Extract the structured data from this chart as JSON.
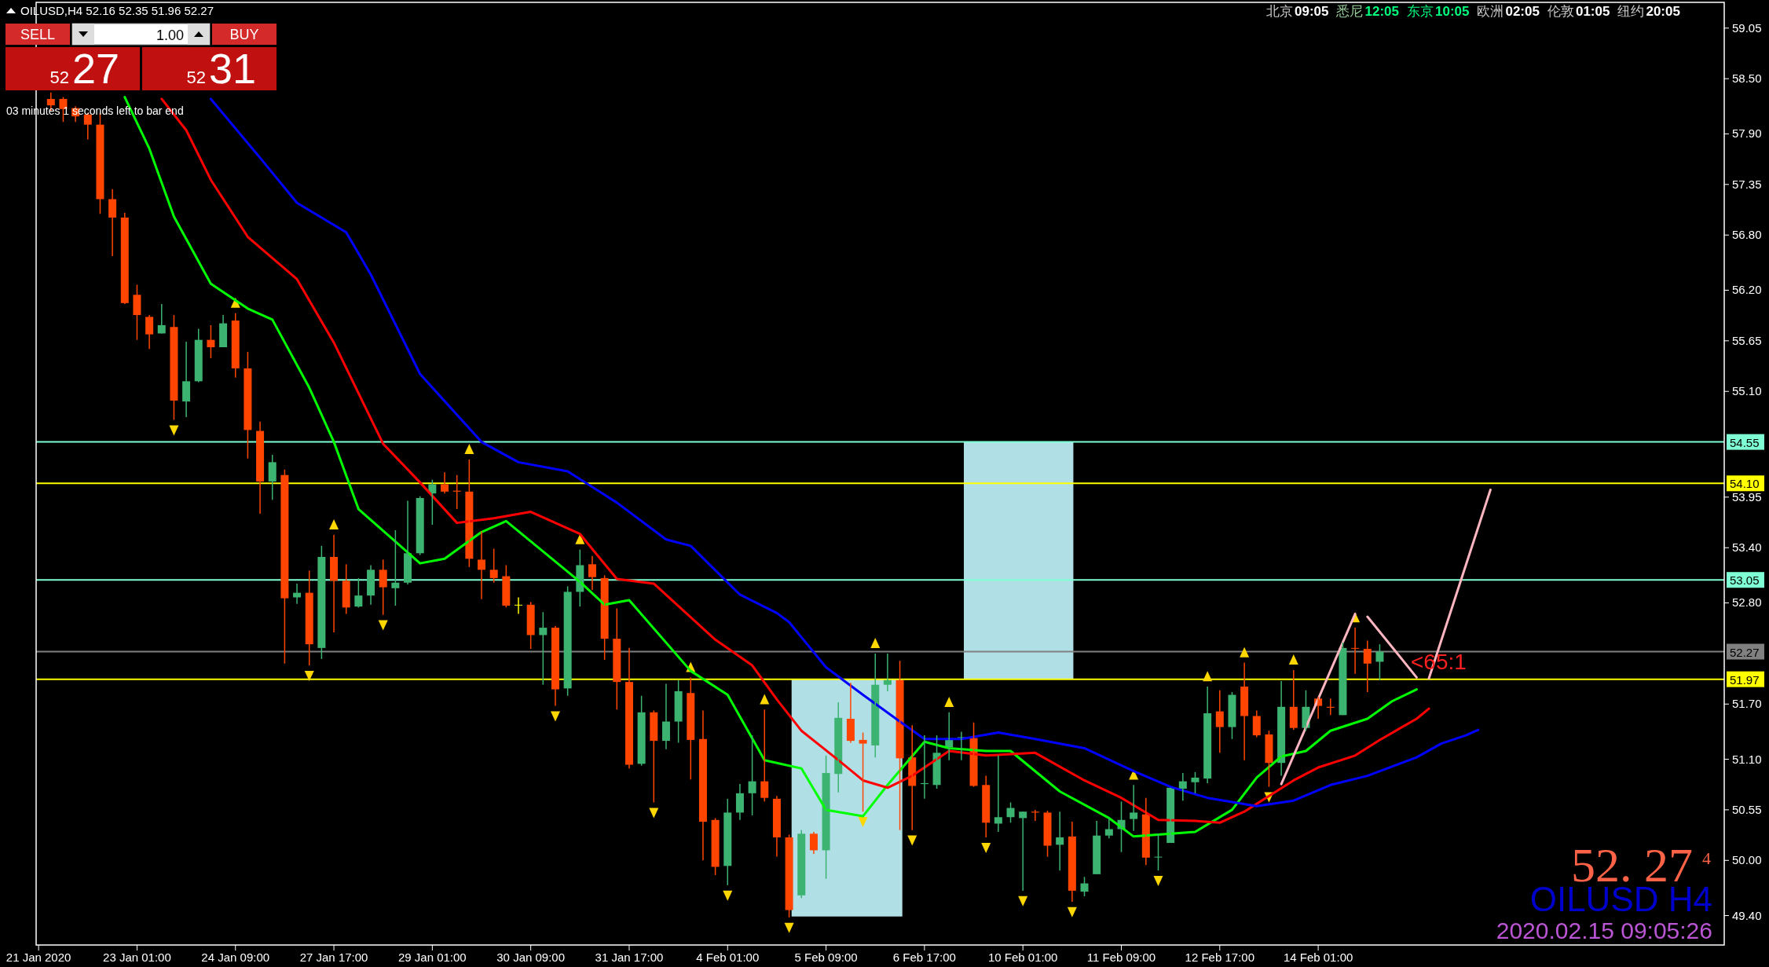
{
  "chart_data": {
    "type": "candlestick",
    "title": "OILUSD,H4  52.16 52.35 51.96 52.27",
    "categories": [
      "21 Jan 2020",
      null,
      null,
      null,
      null,
      null,
      null,
      null,
      "23 Jan 01:00",
      null,
      null,
      null,
      null,
      null,
      null,
      null,
      "24 Jan 09:00",
      null,
      null,
      null,
      null,
      null,
      null,
      null,
      "27 Jan 17:00",
      null,
      null,
      null,
      null,
      null,
      null,
      null,
      "29 Jan 01:00",
      null,
      null,
      null,
      null,
      null,
      null,
      null,
      "30 Jan 09:00",
      null,
      null,
      null,
      null,
      null,
      null,
      null,
      "31 Jan 17:00",
      null,
      null,
      null,
      null,
      null,
      null,
      null,
      "4 Feb 01:00",
      null,
      null,
      null,
      null,
      null,
      null,
      null,
      "5 Feb 09:00",
      null,
      null,
      null,
      null,
      null,
      null,
      null,
      "6 Feb 17:00",
      null,
      null,
      null,
      null,
      null,
      null,
      null,
      "10 Feb 01:00",
      null,
      null,
      null,
      null,
      null,
      null,
      null,
      "11 Feb 09:00",
      null,
      null,
      null,
      null,
      null,
      null,
      null,
      "12 Feb 17:00",
      null,
      null,
      null,
      null,
      null,
      null,
      null,
      "14 Feb 01:00",
      null,
      null,
      null,
      null,
      null,
      null,
      null,
      null,
      null,
      null,
      null,
      null,
      null,
      null,
      null,
      null,
      null,
      null,
      null,
      null,
      null,
      null,
      null,
      null,
      null,
      null,
      null,
      null,
      null,
      null,
      null,
      null,
      null
    ],
    "ylim": [
      49.08,
      59.33
    ],
    "yticks": [
      {
        "value": 59.05,
        "label": "59.05"
      },
      {
        "value": 58.5,
        "label": "58.50"
      },
      {
        "value": 57.9,
        "label": "57.90"
      },
      {
        "value": 57.35,
        "label": "57.35"
      },
      {
        "value": 56.8,
        "label": "56.80"
      },
      {
        "value": 56.2,
        "label": "56.20"
      },
      {
        "value": 55.65,
        "label": "55.65"
      },
      {
        "value": 55.1,
        "label": "55.10"
      },
      {
        "value": 53.95,
        "label": "53.95"
      },
      {
        "value": 53.4,
        "label": "53.40"
      },
      {
        "value": 52.8,
        "label": "52.80"
      },
      {
        "value": 51.7,
        "label": "51.70"
      },
      {
        "value": 51.1,
        "label": "51.10"
      },
      {
        "value": 50.55,
        "label": "50.55"
      },
      {
        "value": 50.0,
        "label": "50.00"
      },
      {
        "value": 49.4,
        "label": "49.40"
      }
    ],
    "ohlc": [
      null,
      [
        58.28,
        58.35,
        58.15,
        58.21
      ],
      [
        58.28,
        58.3,
        58.03,
        58.17
      ],
      [
        58.18,
        58.2,
        58.03,
        58.09
      ],
      [
        58.11,
        58.13,
        57.84,
        58.0
      ],
      [
        58.0,
        58.13,
        57.03,
        57.19
      ],
      [
        57.19,
        57.3,
        56.57,
        56.99
      ],
      [
        56.99,
        57.04,
        56.05,
        56.06
      ],
      [
        56.15,
        56.26,
        55.66,
        55.93
      ],
      [
        55.91,
        55.93,
        55.56,
        55.72
      ],
      [
        55.73,
        56.05,
        55.73,
        55.82
      ],
      [
        55.8,
        55.93,
        54.79,
        55.0
      ],
      [
        54.99,
        55.64,
        54.82,
        55.21
      ],
      [
        55.21,
        55.78,
        55.2,
        55.66
      ],
      [
        55.66,
        55.82,
        55.46,
        55.58
      ],
      [
        55.58,
        55.93,
        55.58,
        55.84
      ],
      [
        55.87,
        55.95,
        55.25,
        55.35
      ],
      [
        55.35,
        55.53,
        54.37,
        54.68
      ],
      [
        54.67,
        54.77,
        53.77,
        54.12
      ],
      [
        54.12,
        54.41,
        53.92,
        54.33
      ],
      [
        54.19,
        54.25,
        52.14,
        52.85
      ],
      [
        52.86,
        53.01,
        52.79,
        52.91
      ],
      [
        52.91,
        53.15,
        52.12,
        52.35
      ],
      [
        52.31,
        53.42,
        52.19,
        53.3
      ],
      [
        53.3,
        53.54,
        52.48,
        53.04
      ],
      [
        53.04,
        53.22,
        52.68,
        52.75
      ],
      [
        52.76,
        53.07,
        52.75,
        52.88
      ],
      [
        52.88,
        53.21,
        52.78,
        53.16
      ],
      [
        53.16,
        53.27,
        52.67,
        52.97
      ],
      [
        52.96,
        53.59,
        52.77,
        53.02
      ],
      [
        53.02,
        53.91,
        53.0,
        53.34
      ],
      [
        53.34,
        53.96,
        53.32,
        53.94
      ],
      [
        53.99,
        54.14,
        53.65,
        54.09
      ],
      [
        54.09,
        54.22,
        53.99,
        54.01
      ],
      [
        54.02,
        54.19,
        53.82,
        54.01
      ],
      [
        54.01,
        54.36,
        53.19,
        53.28
      ],
      [
        53.27,
        53.58,
        52.84,
        53.16
      ],
      [
        53.16,
        53.39,
        53.02,
        53.07
      ],
      [
        53.09,
        53.21,
        52.75,
        52.77
      ],
      [
        52.78,
        52.86,
        52.68,
        52.78
      ],
      [
        52.78,
        52.81,
        52.3,
        52.45
      ],
      [
        52.45,
        52.7,
        51.91,
        52.53
      ],
      [
        52.53,
        52.55,
        51.68,
        51.86
      ],
      [
        51.87,
        52.98,
        51.79,
        52.92
      ],
      [
        52.92,
        53.38,
        52.76,
        53.21
      ],
      [
        53.22,
        53.31,
        52.94,
        53.08
      ],
      [
        53.07,
        53.1,
        52.18,
        52.41
      ],
      [
        52.41,
        52.74,
        51.64,
        51.94
      ],
      [
        51.94,
        52.31,
        51.0,
        51.04
      ],
      [
        51.05,
        51.79,
        51.03,
        51.61
      ],
      [
        51.61,
        51.63,
        50.63,
        51.3
      ],
      [
        51.3,
        51.92,
        51.21,
        51.51
      ],
      [
        51.51,
        51.96,
        51.28,
        51.84
      ],
      [
        51.82,
        51.99,
        50.88,
        51.31
      ],
      [
        51.32,
        51.63,
        50.0,
        50.42
      ],
      [
        50.44,
        50.46,
        49.84,
        49.93
      ],
      [
        49.94,
        50.67,
        49.73,
        50.52
      ],
      [
        50.52,
        50.83,
        50.44,
        50.73
      ],
      [
        50.73,
        51.36,
        50.49,
        50.86
      ],
      [
        50.86,
        51.64,
        50.64,
        50.68
      ],
      [
        50.67,
        50.7,
        50.04,
        50.25
      ],
      [
        50.25,
        50.28,
        49.38,
        49.46
      ],
      [
        49.62,
        50.33,
        49.59,
        50.29
      ],
      [
        50.29,
        50.31,
        50.07,
        50.11
      ],
      [
        50.11,
        51.14,
        49.8,
        50.95
      ],
      [
        50.94,
        51.72,
        50.74,
        51.55
      ],
      [
        51.54,
        51.93,
        51.28,
        51.3
      ],
      [
        51.31,
        51.39,
        50.53,
        51.27
      ],
      [
        51.25,
        52.25,
        51.12,
        51.91
      ],
      [
        51.91,
        52.25,
        51.84,
        51.96
      ],
      [
        51.96,
        52.17,
        50.33,
        51.11
      ],
      [
        51.12,
        51.47,
        50.33,
        50.81
      ],
      [
        50.83,
        51.36,
        50.67,
        50.84
      ],
      [
        50.82,
        51.36,
        50.78,
        51.17
      ],
      [
        51.23,
        51.61,
        51.09,
        51.33
      ],
      [
        51.33,
        51.4,
        51.09,
        51.34
      ],
      [
        51.33,
        51.5,
        50.8,
        50.81
      ],
      [
        50.82,
        50.92,
        50.25,
        50.41
      ],
      [
        50.4,
        51.14,
        50.31,
        50.47
      ],
      [
        50.47,
        50.63,
        50.41,
        50.57
      ],
      [
        50.46,
        50.53,
        49.67,
        50.53
      ],
      [
        50.53,
        50.55,
        50.43,
        50.52
      ],
      [
        50.52,
        50.54,
        50.04,
        50.16
      ],
      [
        50.17,
        50.53,
        49.89,
        50.25
      ],
      [
        50.26,
        50.42,
        49.55,
        49.67
      ],
      [
        49.66,
        49.82,
        49.61,
        49.75
      ],
      [
        49.85,
        50.43,
        49.85,
        50.27
      ],
      [
        50.27,
        50.46,
        50.24,
        50.34
      ],
      [
        50.34,
        50.64,
        50.09,
        50.44
      ],
      [
        50.45,
        50.82,
        50.32,
        50.52
      ],
      [
        50.5,
        50.68,
        49.95,
        50.03
      ],
      [
        50.04,
        50.29,
        49.89,
        50.04
      ],
      [
        50.19,
        50.79,
        50.19,
        50.79
      ],
      [
        50.78,
        50.95,
        50.65,
        50.86
      ],
      [
        50.85,
        50.96,
        50.73,
        50.9
      ],
      [
        50.89,
        51.89,
        50.84,
        51.6
      ],
      [
        51.62,
        51.85,
        51.17,
        51.45
      ],
      [
        51.45,
        51.83,
        51.32,
        51.8
      ],
      [
        51.89,
        52.15,
        51.09,
        51.57
      ],
      [
        51.57,
        51.63,
        51.34,
        51.36
      ],
      [
        51.37,
        51.41,
        50.8,
        51.06
      ],
      [
        51.06,
        51.95,
        50.92,
        51.67
      ],
      [
        51.67,
        52.07,
        51.42,
        51.44
      ],
      [
        51.44,
        51.85,
        51.41,
        51.67
      ],
      [
        51.76,
        51.78,
        51.54,
        51.68
      ],
      [
        51.67,
        51.76,
        51.58,
        51.66
      ],
      [
        51.58,
        52.37,
        51.58,
        52.31
      ],
      [
        52.31,
        52.53,
        52.03,
        52.31
      ],
      [
        52.3,
        52.39,
        51.83,
        52.14
      ],
      [
        52.16,
        52.35,
        51.96,
        52.27
      ],
      null,
      null,
      null,
      null,
      null,
      null,
      null,
      null,
      null,
      null,
      null,
      null,
      null,
      null,
      null,
      null,
      null,
      null,
      null,
      null,
      null,
      null,
      null,
      null,
      null,
      null,
      null,
      null
    ],
    "colors": [
      null,
      "#ff4500",
      "#ff4500",
      "#ff4500",
      "#ff4500",
      "#ff4500",
      "#ff4500",
      "#ff4500",
      "#ff4500",
      "#ff4500",
      "#3cb371",
      "#ff4500",
      "#3cb371",
      "#3cb371",
      "#ff4500",
      "#3cb371",
      "#ff4500",
      "#ff4500",
      "#ff4500",
      "#3cb371",
      "#ff4500",
      "#3cb371",
      "#ff4500",
      "#3cb371",
      "#ff4500",
      "#ff4500",
      "#3cb371",
      "#3cb371",
      "#ff4500",
      "#3cb371",
      "#3cb371",
      "#3cb371",
      "#3cb371",
      "#ff4500",
      "#ff4500",
      "#ff4500",
      "#ff4500",
      "#ff4500",
      "#ff4500",
      "#ffff00",
      "#ff4500",
      "#3cb371",
      "#ff4500",
      "#3cb371",
      "#3cb371",
      "#ff4500",
      "#ff4500",
      "#ff4500",
      "#ff4500",
      "#3cb371",
      "#ff4500",
      "#3cb371",
      "#3cb371",
      "#ff4500",
      "#ff4500",
      "#ff4500",
      "#3cb371",
      "#3cb371",
      "#3cb371",
      "#ff4500",
      "#ff4500",
      "#ff4500",
      "#3cb371",
      "#ff4500",
      "#3cb371",
      "#3cb371",
      "#ff4500",
      "#ff4500",
      "#3cb371",
      "#3cb371",
      "#ff4500",
      "#ff4500",
      "#3cb371",
      "#3cb371",
      "#3cb371",
      "#3cb371",
      "#ff4500",
      "#ff4500",
      "#3cb371",
      "#3cb371",
      "#3cb371",
      "#ff4500",
      "#ff4500",
      "#3cb371",
      "#ff4500",
      "#3cb371",
      "#3cb371",
      "#3cb371",
      "#3cb371",
      "#3cb371",
      "#ff4500",
      "#3cb371",
      "#3cb371",
      "#3cb371",
      "#3cb371",
      "#3cb371",
      "#ff4500",
      "#3cb371",
      "#ff4500",
      "#ff4500",
      "#ff4500",
      "#3cb371",
      "#ff4500",
      "#3cb371",
      "#ff4500",
      "#ff4500",
      "#3cb371",
      "#ff4500",
      "#ff4500",
      "#3cb371",
      null,
      null,
      null,
      null,
      null,
      null,
      null,
      null,
      null,
      null,
      null,
      null,
      null,
      null,
      null,
      null,
      null,
      null,
      null,
      null,
      null,
      null,
      null,
      null,
      null,
      null,
      null,
      null
    ],
    "series": [
      {
        "type": "line",
        "color": "#00ff00",
        "values": [
          null,
          null,
          null,
          null,
          null,
          null,
          null,
          58.3,
          null,
          57.74,
          null,
          57.0,
          null,
          null,
          56.27,
          null,
          null,
          56.0,
          null,
          55.88,
          null,
          null,
          55.14,
          null,
          54.55,
          null,
          53.82,
          null,
          null,
          null,
          null,
          53.23,
          null,
          53.28,
          null,
          null,
          53.57,
          null,
          53.69,
          null,
          53.47,
          null,
          null,
          null,
          53.03,
          null,
          52.78,
          null,
          52.83,
          null,
          null,
          null,
          null,
          52.06,
          null,
          null,
          51.8,
          null,
          null,
          51.09,
          null,
          null,
          51.0,
          null,
          50.55,
          null,
          null,
          50.48,
          null,
          50.82,
          null,
          null,
          51.29,
          null,
          51.22,
          null,
          null,
          51.19,
          null,
          51.19,
          null,
          null,
          null,
          50.75,
          null,
          null,
          null,
          50.46,
          null,
          50.26,
          null,
          null,
          null,
          null,
          50.31,
          null,
          null,
          50.55,
          null,
          50.9,
          null,
          51.13,
          null,
          51.19,
          null,
          51.41,
          null,
          null,
          51.54,
          null,
          51.73,
          null,
          51.86,
          null,
          null,
          null,
          null,
          null,
          null,
          null,
          null,
          null,
          null,
          null,
          null,
          null,
          null,
          null,
          null,
          null,
          null,
          null,
          null,
          null,
          null,
          null,
          null,
          null
        ]
      },
      {
        "type": "line",
        "color": "#ff0000",
        "values": [
          null,
          null,
          null,
          null,
          null,
          null,
          null,
          null,
          null,
          null,
          58.28,
          null,
          57.94,
          null,
          57.4,
          null,
          null,
          56.78,
          null,
          null,
          null,
          56.32,
          null,
          null,
          55.63,
          null,
          null,
          null,
          54.53,
          null,
          null,
          54.11,
          null,
          null,
          53.67,
          null,
          null,
          53.72,
          null,
          null,
          53.79,
          null,
          null,
          null,
          53.55,
          null,
          null,
          53.06,
          null,
          null,
          53.01,
          null,
          null,
          null,
          null,
          52.4,
          null,
          null,
          52.12,
          null,
          51.75,
          null,
          51.41,
          null,
          null,
          51.09,
          null,
          50.87,
          null,
          50.79,
          null,
          50.92,
          null,
          null,
          51.19,
          null,
          null,
          51.14,
          null,
          null,
          null,
          51.17,
          null,
          null,
          null,
          50.87,
          null,
          null,
          50.68,
          null,
          null,
          50.44,
          null,
          null,
          50.43,
          null,
          50.41,
          null,
          50.53,
          null,
          null,
          null,
          50.87,
          null,
          51.01,
          null,
          null,
          51.14,
          null,
          51.31,
          null,
          null,
          51.54,
          51.65,
          null,
          null,
          null,
          null,
          null,
          null,
          null,
          null,
          null,
          null,
          null,
          null,
          null,
          null,
          null,
          null,
          null,
          null,
          null,
          null,
          null,
          null,
          null,
          null
        ]
      },
      {
        "type": "line",
        "color": "#0000ff",
        "values": [
          null,
          null,
          null,
          null,
          null,
          null,
          null,
          null,
          null,
          null,
          null,
          null,
          null,
          null,
          58.28,
          null,
          null,
          null,
          57.64,
          null,
          null,
          57.15,
          null,
          null,
          null,
          56.83,
          null,
          56.37,
          null,
          null,
          null,
          55.29,
          null,
          null,
          null,
          null,
          54.55,
          null,
          null,
          54.33,
          null,
          null,
          null,
          54.23,
          null,
          null,
          null,
          53.89,
          null,
          null,
          null,
          53.49,
          null,
          53.42,
          null,
          null,
          null,
          52.89,
          null,
          null,
          52.69,
          52.59,
          null,
          null,
          52.1,
          null,
          null,
          51.8,
          null,
          null,
          51.51,
          null,
          51.32,
          null,
          null,
          51.32,
          null,
          null,
          51.39,
          null,
          null,
          51.32,
          null,
          null,
          null,
          51.22,
          null,
          null,
          null,
          50.97,
          null,
          null,
          50.8,
          null,
          null,
          50.68,
          null,
          null,
          null,
          50.59,
          null,
          null,
          50.65,
          null,
          null,
          50.82,
          null,
          null,
          50.92,
          null,
          null,
          null,
          51.12,
          null,
          51.27,
          null,
          51.36,
          51.42,
          null,
          null,
          null,
          null,
          null,
          null,
          null,
          null,
          null,
          null,
          null,
          null,
          null,
          null,
          null,
          null,
          null,
          null,
          null,
          null
        ]
      },
      {
        "type": "line",
        "color": "#ffb6c1",
        "values": [
          null,
          null,
          null,
          null,
          null,
          null,
          null,
          null,
          null,
          null,
          null,
          null,
          null,
          null,
          null,
          null,
          null,
          null,
          null,
          null,
          null,
          null,
          null,
          null,
          null,
          null,
          null,
          null,
          null,
          null,
          null,
          null,
          null,
          null,
          null,
          null,
          null,
          null,
          null,
          null,
          null,
          null,
          null,
          null,
          null,
          null,
          null,
          null,
          null,
          null,
          null,
          null,
          null,
          null,
          null,
          null,
          null,
          null,
          null,
          null,
          null,
          null,
          null,
          null,
          null,
          null,
          null,
          null,
          null,
          null,
          null,
          null,
          null,
          null,
          null,
          null,
          null,
          null,
          null,
          null,
          null,
          null,
          null,
          null,
          null,
          null,
          null,
          null,
          null,
          null,
          null,
          null,
          null,
          null,
          null,
          null,
          null,
          null,
          null,
          null,
          null,
          50.83,
          null,
          null,
          null,
          null,
          null,
          52.68,
          null,
          null,
          null,
          null,
          null,
          null,
          null,
          null,
          null,
          null,
          null,
          null,
          null,
          null,
          null,
          null,
          null,
          null,
          null,
          null,
          null,
          null,
          null,
          null,
          null,
          null,
          null,
          null,
          null,
          null
        ]
      },
      {
        "type": "line",
        "color": "#ffb6c1",
        "values": [
          null,
          null,
          null,
          null,
          null,
          null,
          null,
          null,
          null,
          null,
          null,
          null,
          null,
          null,
          null,
          null,
          null,
          null,
          null,
          null,
          null,
          null,
          null,
          null,
          null,
          null,
          null,
          null,
          null,
          null,
          null,
          null,
          null,
          null,
          null,
          null,
          null,
          null,
          null,
          null,
          null,
          null,
          null,
          null,
          null,
          null,
          null,
          null,
          null,
          null,
          null,
          null,
          null,
          null,
          null,
          null,
          null,
          null,
          null,
          null,
          null,
          null,
          null,
          null,
          null,
          null,
          null,
          null,
          null,
          null,
          null,
          null,
          null,
          null,
          null,
          null,
          null,
          null,
          null,
          null,
          null,
          null,
          null,
          null,
          null,
          null,
          null,
          null,
          null,
          null,
          null,
          null,
          null,
          null,
          null,
          null,
          null,
          null,
          null,
          null,
          null,
          null,
          null,
          null,
          null,
          null,
          null,
          null,
          52.65,
          null,
          null,
          null,
          51.99,
          null,
          null,
          null,
          null,
          null,
          null,
          null,
          null,
          null,
          null,
          null,
          null,
          null,
          null,
          null,
          null,
          null,
          null,
          null,
          null,
          null,
          null,
          null,
          null,
          null
        ]
      },
      {
        "type": "line",
        "color": "#ffb6c1",
        "values": [
          null,
          null,
          null,
          null,
          null,
          null,
          null,
          null,
          null,
          null,
          null,
          null,
          null,
          null,
          null,
          null,
          null,
          null,
          null,
          null,
          null,
          null,
          null,
          null,
          null,
          null,
          null,
          null,
          null,
          null,
          null,
          null,
          null,
          null,
          null,
          null,
          null,
          null,
          null,
          null,
          null,
          null,
          null,
          null,
          null,
          null,
          null,
          null,
          null,
          null,
          null,
          null,
          null,
          null,
          null,
          null,
          null,
          null,
          null,
          null,
          null,
          null,
          null,
          null,
          null,
          null,
          null,
          null,
          null,
          null,
          null,
          null,
          null,
          null,
          null,
          null,
          null,
          null,
          null,
          null,
          null,
          null,
          null,
          null,
          null,
          null,
          null,
          null,
          null,
          null,
          null,
          null,
          null,
          null,
          null,
          null,
          null,
          null,
          null,
          null,
          null,
          null,
          null,
          null,
          null,
          null,
          null,
          null,
          null,
          null,
          null,
          null,
          null,
          51.98,
          null,
          null,
          null,
          null,
          54.03,
          null,
          null,
          null,
          null,
          null,
          null,
          null,
          null,
          null,
          null,
          null,
          null,
          null,
          null,
          null,
          null,
          null,
          null,
          null
        ]
      },
      {
        "type": "scatter",
        "marker": "triangle",
        "color": "#ffd700",
        "values": [
          null,
          null,
          null,
          null,
          null,
          null,
          null,
          null,
          null,
          null,
          null,
          null,
          null,
          null,
          null,
          null,
          56.06,
          null,
          null,
          null,
          null,
          null,
          null,
          null,
          53.65,
          null,
          null,
          null,
          null,
          null,
          null,
          null,
          null,
          null,
          null,
          54.47,
          null,
          null,
          null,
          null,
          null,
          null,
          null,
          null,
          53.49,
          null,
          null,
          null,
          null,
          null,
          null,
          null,
          null,
          52.1,
          null,
          null,
          null,
          null,
          null,
          51.75,
          null,
          null,
          null,
          null,
          null,
          null,
          null,
          null,
          52.36,
          null,
          null,
          null,
          null,
          null,
          51.72,
          null,
          null,
          null,
          null,
          null,
          null,
          null,
          null,
          null,
          null,
          null,
          null,
          null,
          null,
          50.93,
          null,
          null,
          null,
          null,
          null,
          52.0,
          null,
          null,
          52.26,
          null,
          null,
          null,
          52.18,
          null,
          null,
          null,
          null,
          52.64,
          null,
          null,
          null,
          null,
          null,
          null,
          null,
          null,
          null,
          null,
          null,
          null,
          null,
          null,
          null,
          null,
          null,
          null,
          null,
          null,
          null,
          null,
          null,
          null,
          null,
          null,
          null,
          null,
          null,
          null
        ]
      },
      {
        "type": "scatter",
        "marker": "triangle",
        "color": "#ffd700",
        "values": [
          null,
          null,
          null,
          null,
          null,
          null,
          null,
          null,
          null,
          null,
          null,
          54.68,
          null,
          null,
          null,
          null,
          null,
          null,
          null,
          null,
          null,
          null,
          52.01,
          null,
          null,
          null,
          null,
          null,
          52.56,
          null,
          null,
          null,
          null,
          null,
          null,
          null,
          null,
          null,
          null,
          null,
          null,
          null,
          51.57,
          null,
          null,
          null,
          null,
          null,
          null,
          null,
          50.52,
          null,
          null,
          null,
          null,
          null,
          49.62,
          null,
          null,
          null,
          null,
          49.27,
          null,
          null,
          null,
          null,
          null,
          50.42,
          null,
          null,
          null,
          50.22,
          null,
          null,
          null,
          null,
          null,
          50.14,
          null,
          null,
          49.56,
          null,
          null,
          null,
          49.44,
          null,
          null,
          null,
          null,
          null,
          null,
          49.78,
          null,
          null,
          null,
          null,
          null,
          null,
          null,
          null,
          50.69,
          null,
          null,
          null,
          null,
          null,
          null,
          null,
          null,
          null,
          null,
          null,
          null,
          null,
          null,
          null,
          null,
          null,
          null,
          null,
          null,
          null,
          null,
          null,
          null,
          null,
          null,
          null,
          null,
          null,
          null,
          null,
          null,
          null,
          null,
          null,
          null,
          null
        ]
      }
    ],
    "ref_lines": [
      {
        "axis": "y",
        "value": 54.55,
        "label": "54.55",
        "color": "#7fffd4"
      },
      {
        "axis": "y",
        "value": 54.1,
        "label": "54.10",
        "color": "#ffff00"
      },
      {
        "axis": "y",
        "value": 53.05,
        "label": "53.05",
        "color": "#7fffd4"
      },
      {
        "axis": "y",
        "value": 52.27,
        "label": "52.27",
        "color": "#808080"
      },
      {
        "axis": "y",
        "value": 51.97,
        "label": "51.97",
        "color": "#ffff00"
      }
    ],
    "annotations": [
      "03 minutes 1 seconds left to bar end",
      "SELL",
      "1.00",
      "BUY",
      "52",
      "27",
      "52",
      "31",
      "北京",
      "09:05",
      "悉尼",
      "12:05",
      "东京",
      "10:05",
      "欧洲",
      "02:05",
      "伦敦",
      "01:05",
      "纽约",
      "20:05",
      "52. 27",
      "4",
      "OILUSD H4",
      "2020.02.15 09:05:26",
      "<65:1"
    ]
  }
}
